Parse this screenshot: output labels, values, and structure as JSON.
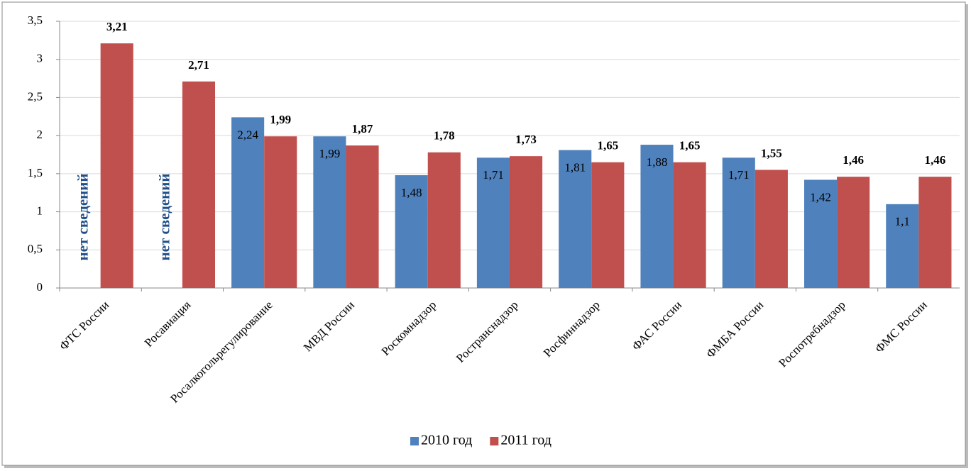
{
  "chart_data": {
    "type": "bar",
    "categories": [
      "ФТС России",
      "Росавиация",
      "Росалкогольрегулирование",
      "МВД России",
      "Роскомнадзор",
      "Ространснадзор",
      "Росфиннадзор",
      "ФАС России",
      "ФМБА России",
      "Роспотребнадзор",
      "ФМС России"
    ],
    "series": [
      {
        "name": "2010 год",
        "color": "#4f81bd",
        "values": [
          null,
          null,
          2.24,
          1.99,
          1.48,
          1.71,
          1.81,
          1.88,
          1.71,
          1.42,
          1.1
        ],
        "value_labels": [
          null,
          null,
          "2,24",
          "1,99",
          "1,48",
          "1,71",
          "1,81",
          "1,88",
          "1,71",
          "1,42",
          "1,1"
        ]
      },
      {
        "name": "2011 год",
        "color": "#c0504d",
        "values": [
          3.21,
          2.71,
          1.99,
          1.87,
          1.78,
          1.73,
          1.65,
          1.65,
          1.55,
          1.46,
          1.46
        ],
        "value_labels": [
          "3,21",
          "2,71",
          "1,99",
          "1,87",
          "1,78",
          "1,73",
          "1,65",
          "1,65",
          "1,55",
          "1,46",
          "1,46"
        ]
      }
    ],
    "annotations": [
      "нет сведений",
      "нет сведений"
    ],
    "ylim": [
      0,
      3.5
    ],
    "yticks": [
      0,
      {
        "value": 0.5,
        "label": "0,5"
      },
      1,
      {
        "value": 1.5,
        "label": "1,5"
      },
      2,
      {
        "value": 2.5,
        "label": "2,5"
      },
      3,
      {
        "value": 3.5,
        "label": "3,5"
      }
    ],
    "grid": true,
    "legend": "bottom"
  }
}
